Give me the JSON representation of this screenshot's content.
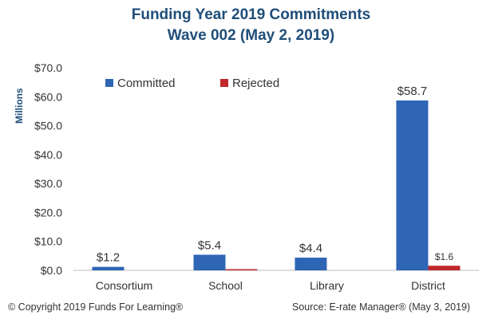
{
  "chart_data": {
    "type": "bar",
    "title": "Funding Year 2019 Commitments",
    "subtitle": "Wave 002 (May 2, 2019)",
    "ylabel": "Millions",
    "xlabel": "",
    "categories": [
      "Consortium",
      "School",
      "Library",
      "District"
    ],
    "series": [
      {
        "name": "Committed",
        "color": "#2e65b5",
        "values": [
          1.2,
          5.4,
          4.4,
          58.7
        ],
        "labels": [
          "$1.2",
          "$5.4",
          "$4.4",
          "$58.7"
        ]
      },
      {
        "name": "Rejected",
        "color": "#c0282b",
        "values": [
          0.0,
          0.3,
          0.0,
          1.6
        ],
        "labels": [
          "",
          "",
          "",
          "$1.6"
        ]
      }
    ],
    "ylim": [
      0,
      70
    ],
    "yticks": [
      0,
      10,
      20,
      30,
      40,
      50,
      60,
      70
    ],
    "ytick_labels": [
      "$0.0",
      "$10.0",
      "$20.0",
      "$30.0",
      "$40.0",
      "$50.0",
      "$60.0",
      "$70.0"
    ],
    "grid": false,
    "legend_position": "top-left"
  },
  "footer": {
    "copyright": "© Copyright 2019 Funds For Learning®",
    "source": "Source: E-rate Manager®  (May 3, 2019)"
  }
}
